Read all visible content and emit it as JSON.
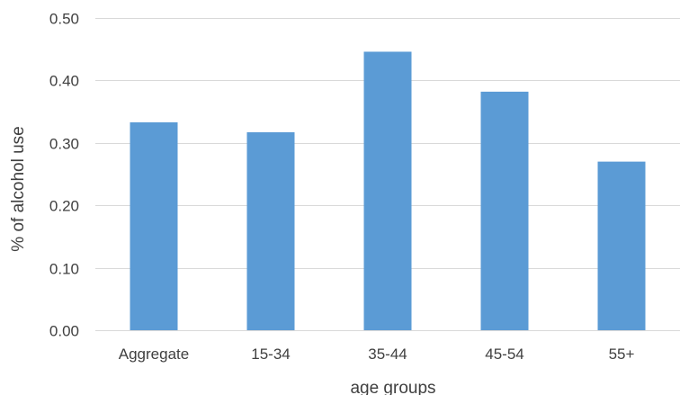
{
  "chart_data": {
    "type": "bar",
    "categories": [
      "Aggregate",
      "15-34",
      "35-44",
      "45-54",
      "55+"
    ],
    "values": [
      0.333,
      0.317,
      0.446,
      0.382,
      0.27
    ],
    "title": "",
    "xlabel": "age groups",
    "ylabel": "% of alcohol use",
    "ylim": [
      0,
      0.5
    ],
    "yticks": [
      "0.00",
      "0.10",
      "0.20",
      "0.30",
      "0.40",
      "0.50"
    ],
    "grid": true,
    "colors": {
      "bar": "#5b9bd5",
      "grid": "#d9d9d9",
      "text": "#404040"
    }
  }
}
